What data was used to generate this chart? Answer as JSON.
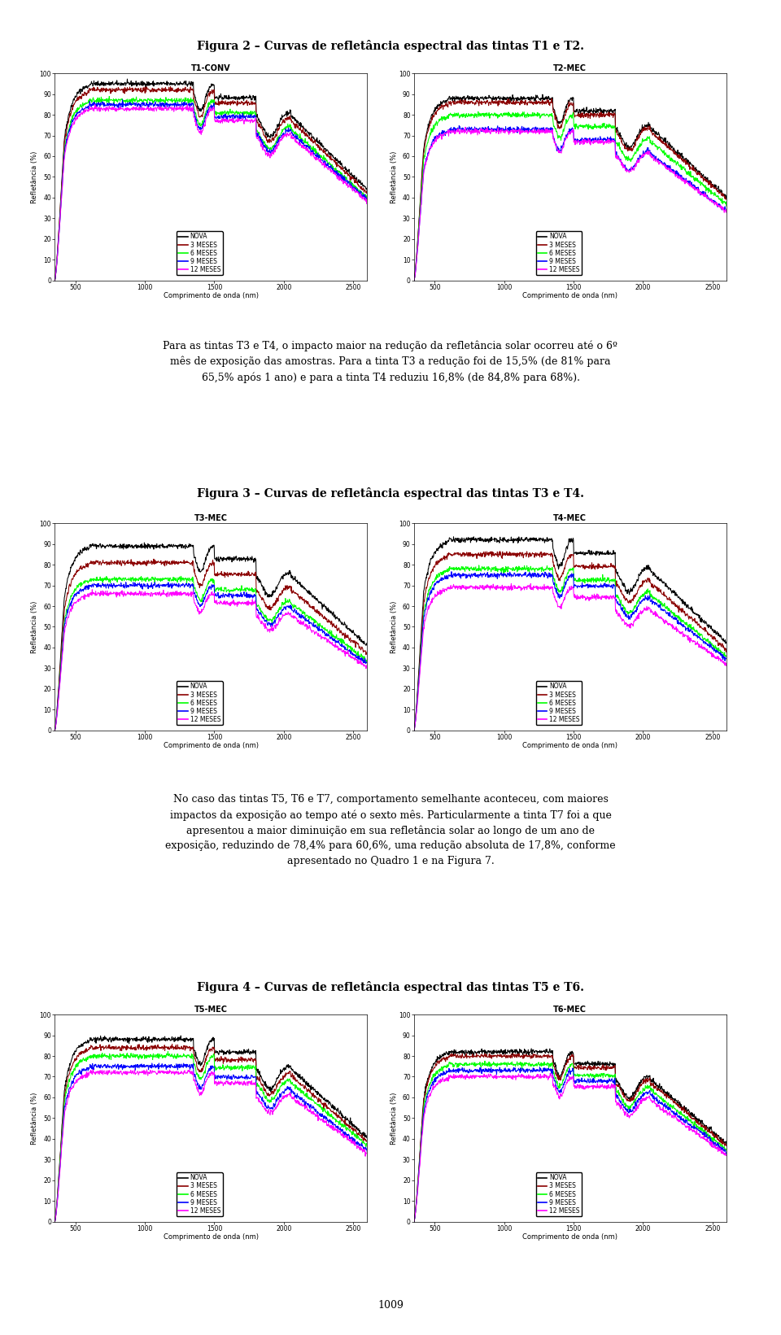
{
  "fig2_title": "Figura 2 – Curvas de refletância espectral das tintas T1 e T2.",
  "fig3_title": "Figura 3 – Curvas de refletância espectral das tintas T3 e T4.",
  "fig4_title": "Figura 4 – Curvas de refletância espectral das tintas T5 e T6.",
  "p1_lines": [
    "Para as tintas T3 e T4, o impacto maior na redução da refletância solar ocorreu até o 6º",
    "mês de exposição das amostras. Para a tinta T3 a redução foi de 15,5% (de 81% para",
    "65,5% após 1 ano) e para a tinta T4 reduziu 16,8% (de 84,8% para 68%)."
  ],
  "p2_lines": [
    "No caso das tintas T5, T6 e T7, comportamento semelhante aconteceu, com maiores",
    "impactos da exposição ao tempo até o sexto mês. Particularmente a tinta T7 foi a que",
    "apresentou a maior diminuição em sua refletância solar ao longo de um ano de",
    "exposição, reduzindo de 78,4% para 60,6%, uma redução absoluta de 17,8%, conforme",
    "apresentado no Quadro 1 e na Figura 7."
  ],
  "page_number": "1009",
  "legend_labels": [
    "NOVA",
    "3 MESES",
    "6 MESES",
    "9 MESES",
    "12 MESES"
  ],
  "legend_colors": [
    "black",
    "#8B0000",
    "lime",
    "blue",
    "magenta"
  ],
  "subplot_titles_row1": [
    "T1-CONV",
    "T2-MEC"
  ],
  "subplot_titles_row2": [
    "T3-MEC",
    "T4-MEC"
  ],
  "subplot_titles_row3": [
    "T5-MEC",
    "T6-MEC"
  ],
  "xlabel": "Comprimento de onda (nm)",
  "ylabel": "Refletância (%)",
  "xticks": [
    500,
    1000,
    1500,
    2000,
    2500
  ],
  "yticks": [
    0,
    10,
    20,
    30,
    40,
    50,
    60,
    70,
    80,
    90,
    100
  ],
  "t1_base": [
    95,
    92,
    87,
    85,
    83
  ],
  "t2_base": [
    88,
    86,
    80,
    73,
    72
  ],
  "t3_base": [
    89,
    81,
    73,
    70,
    66
  ],
  "t4_base": [
    92,
    85,
    78,
    75,
    69
  ],
  "t5_base": [
    88,
    84,
    80,
    75,
    72
  ],
  "t6_base": [
    82,
    80,
    76,
    73,
    70
  ]
}
